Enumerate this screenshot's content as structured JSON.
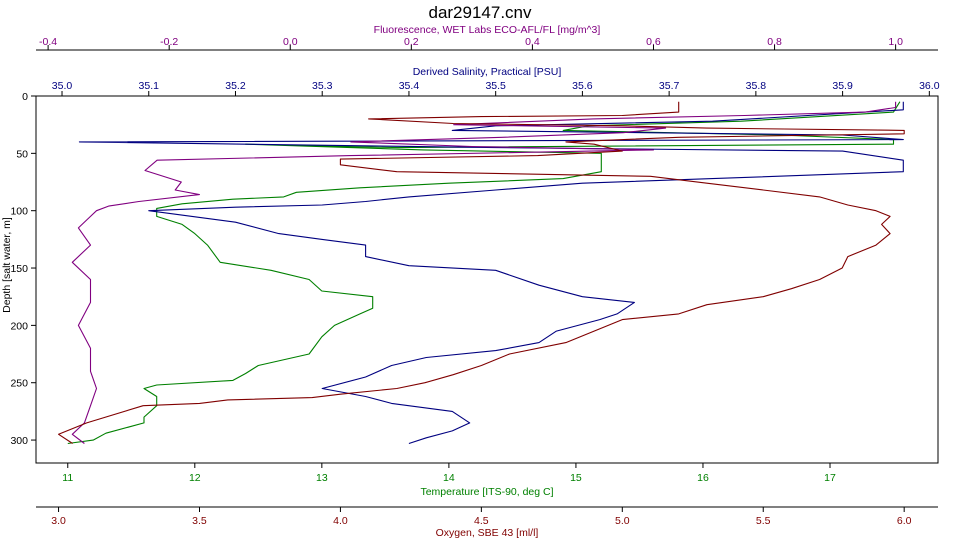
{
  "chart_data": {
    "type": "line",
    "title": "dar29147.cnv",
    "y_axis": {
      "label": "Depth [salt water, m]",
      "range": [
        320,
        0
      ],
      "ticks": [
        0,
        50,
        100,
        150,
        200,
        250,
        300
      ],
      "color": "#000000"
    },
    "x_axes": [
      {
        "id": "fluorescence",
        "label": "Fluorescence, WET Labs ECO-AFL/FL [mg/m^3]",
        "position": "top-outer",
        "range": [
          -0.42,
          1.07
        ],
        "ticks": [
          -0.4,
          -0.2,
          0.0,
          0.2,
          0.4,
          0.6,
          0.8,
          1.0
        ],
        "tick_labels": [
          "-0.4",
          "-0.2",
          "0.0",
          "0.2",
          "0.4",
          "0.6",
          "0.8",
          "1.0"
        ],
        "color": "#800080"
      },
      {
        "id": "salinity",
        "label": "Derived Salinity, Practical [PSU]",
        "position": "top-inner",
        "range": [
          34.97,
          36.01
        ],
        "ticks": [
          35.0,
          35.1,
          35.2,
          35.3,
          35.4,
          35.5,
          35.6,
          35.7,
          35.8,
          35.9,
          36.0
        ],
        "tick_labels": [
          "35.0",
          "35.1",
          "35.2",
          "35.3",
          "35.4",
          "35.5",
          "35.6",
          "35.7",
          "35.8",
          "35.9",
          "36.0"
        ],
        "color": "#000080"
      },
      {
        "id": "temperature",
        "label": "Temperature [ITS-90, deg C]",
        "position": "bottom-inner",
        "range": [
          10.75,
          17.85
        ],
        "ticks": [
          11,
          12,
          13,
          14,
          15,
          16,
          17
        ],
        "tick_labels": [
          "11",
          "12",
          "13",
          "14",
          "15",
          "16",
          "17"
        ],
        "color": "#008000"
      },
      {
        "id": "oxygen",
        "label": "Oxygen, SBE 43 [ml/l]",
        "position": "bottom-outer",
        "range": [
          2.92,
          6.12
        ],
        "ticks": [
          3.0,
          3.5,
          4.0,
          4.5,
          5.0,
          5.5,
          6.0
        ],
        "tick_labels": [
          "3.0",
          "3.5",
          "4.0",
          "4.5",
          "5.0",
          "5.5",
          "6.0"
        ],
        "color": "#800000"
      }
    ],
    "grid": false,
    "series": [
      {
        "axis": "temperature",
        "color": "#008000",
        "points": [
          [
            17.55,
            5
          ],
          [
            17.5,
            14
          ],
          [
            16.3,
            22
          ],
          [
            15.1,
            26
          ],
          [
            14.9,
            30
          ],
          [
            16.6,
            34
          ],
          [
            17.5,
            38
          ],
          [
            17.5,
            42
          ],
          [
            13.6,
            45
          ],
          [
            12.4,
            42
          ],
          [
            13.8,
            47
          ],
          [
            15.2,
            50
          ],
          [
            15.2,
            56
          ],
          [
            15.2,
            66
          ],
          [
            14.9,
            72
          ],
          [
            14.0,
            76
          ],
          [
            13.3,
            80
          ],
          [
            12.8,
            84
          ],
          [
            12.7,
            88
          ],
          [
            12.3,
            90
          ],
          [
            11.9,
            94
          ],
          [
            11.7,
            98
          ],
          [
            11.7,
            105
          ],
          [
            11.9,
            112
          ],
          [
            12.0,
            120
          ],
          [
            12.1,
            130
          ],
          [
            12.2,
            145
          ],
          [
            12.6,
            152
          ],
          [
            12.9,
            160
          ],
          [
            13.0,
            170
          ],
          [
            13.4,
            175
          ],
          [
            13.4,
            185
          ],
          [
            13.3,
            190
          ],
          [
            13.1,
            200
          ],
          [
            13.0,
            210
          ],
          [
            12.9,
            225
          ],
          [
            12.5,
            235
          ],
          [
            12.4,
            242
          ],
          [
            12.3,
            248
          ],
          [
            11.7,
            252
          ],
          [
            11.6,
            255
          ],
          [
            11.7,
            262
          ],
          [
            11.7,
            270
          ],
          [
            11.6,
            280
          ],
          [
            11.6,
            285
          ],
          [
            11.3,
            294
          ],
          [
            11.2,
            300
          ],
          [
            11.0,
            303
          ]
        ]
      },
      {
        "axis": "salinity",
        "color": "#000080",
        "points": [
          [
            35.97,
            5
          ],
          [
            35.97,
            12
          ],
          [
            35.75,
            22
          ],
          [
            35.5,
            26
          ],
          [
            35.45,
            30
          ],
          [
            35.9,
            34
          ],
          [
            35.97,
            38
          ],
          [
            35.02,
            40
          ],
          [
            35.5,
            45
          ],
          [
            35.9,
            48
          ],
          [
            35.97,
            56
          ],
          [
            35.97,
            66
          ],
          [
            35.75,
            72
          ],
          [
            35.6,
            76
          ],
          [
            35.5,
            82
          ],
          [
            35.4,
            88
          ],
          [
            35.35,
            92
          ],
          [
            35.3,
            95
          ],
          [
            35.2,
            97
          ],
          [
            35.1,
            100
          ],
          [
            35.15,
            105
          ],
          [
            35.2,
            110
          ],
          [
            35.25,
            120
          ],
          [
            35.3,
            125
          ],
          [
            35.35,
            130
          ],
          [
            35.35,
            140
          ],
          [
            35.4,
            148
          ],
          [
            35.5,
            152
          ],
          [
            35.55,
            165
          ],
          [
            35.6,
            175
          ],
          [
            35.66,
            180
          ],
          [
            35.64,
            190
          ],
          [
            35.62,
            195
          ],
          [
            35.57,
            205
          ],
          [
            35.55,
            215
          ],
          [
            35.5,
            222
          ],
          [
            35.42,
            228
          ],
          [
            35.38,
            235
          ],
          [
            35.35,
            245
          ],
          [
            35.3,
            255
          ],
          [
            35.35,
            262
          ],
          [
            35.38,
            268
          ],
          [
            35.45,
            275
          ],
          [
            35.47,
            285
          ],
          [
            35.45,
            292
          ],
          [
            35.42,
            298
          ],
          [
            35.4,
            303
          ]
        ]
      },
      {
        "axis": "fluorescence",
        "color": "#800080",
        "points": [
          [
            1.0,
            5
          ],
          [
            1.0,
            10
          ],
          [
            0.95,
            14
          ],
          [
            0.75,
            17
          ],
          [
            0.5,
            20
          ],
          [
            0.27,
            25
          ],
          [
            0.62,
            28
          ],
          [
            0.55,
            32
          ],
          [
            0.35,
            36
          ],
          [
            0.1,
            40
          ],
          [
            0.3,
            44
          ],
          [
            0.6,
            47
          ],
          [
            0.1,
            52
          ],
          [
            -0.22,
            56
          ],
          [
            -0.24,
            65
          ],
          [
            -0.18,
            75
          ],
          [
            -0.19,
            82
          ],
          [
            -0.15,
            86
          ],
          [
            -0.25,
            92
          ],
          [
            -0.3,
            96
          ],
          [
            -0.32,
            100
          ],
          [
            -0.33,
            105
          ],
          [
            -0.35,
            115
          ],
          [
            -0.33,
            130
          ],
          [
            -0.36,
            145
          ],
          [
            -0.33,
            160
          ],
          [
            -0.33,
            180
          ],
          [
            -0.35,
            200
          ],
          [
            -0.33,
            220
          ],
          [
            -0.33,
            240
          ],
          [
            -0.32,
            255
          ],
          [
            -0.33,
            270
          ],
          [
            -0.34,
            285
          ],
          [
            -0.36,
            295
          ],
          [
            -0.34,
            303
          ]
        ]
      },
      {
        "axis": "oxygen",
        "color": "#800000",
        "points": [
          [
            5.2,
            5
          ],
          [
            5.2,
            12
          ],
          [
            5.2,
            14
          ],
          [
            5.0,
            17
          ],
          [
            4.5,
            18
          ],
          [
            4.1,
            20
          ],
          [
            4.4,
            24
          ],
          [
            5.0,
            26
          ],
          [
            5.3,
            28
          ],
          [
            6.0,
            30
          ],
          [
            6.0,
            33
          ],
          [
            5.2,
            36
          ],
          [
            4.8,
            40
          ],
          [
            4.9,
            42
          ],
          [
            5.0,
            48
          ],
          [
            4.7,
            52
          ],
          [
            4.0,
            55
          ],
          [
            4.0,
            60
          ],
          [
            4.2,
            66
          ],
          [
            5.1,
            70
          ],
          [
            5.3,
            76
          ],
          [
            5.5,
            82
          ],
          [
            5.7,
            88
          ],
          [
            5.8,
            95
          ],
          [
            5.9,
            100
          ],
          [
            5.95,
            105
          ],
          [
            5.92,
            112
          ],
          [
            5.95,
            120
          ],
          [
            5.9,
            130
          ],
          [
            5.8,
            140
          ],
          [
            5.78,
            150
          ],
          [
            5.7,
            160
          ],
          [
            5.6,
            168
          ],
          [
            5.5,
            175
          ],
          [
            5.3,
            182
          ],
          [
            5.2,
            190
          ],
          [
            5.0,
            195
          ],
          [
            4.9,
            205
          ],
          [
            4.8,
            215
          ],
          [
            4.6,
            225
          ],
          [
            4.5,
            235
          ],
          [
            4.4,
            243
          ],
          [
            4.3,
            250
          ],
          [
            4.2,
            255
          ],
          [
            4.0,
            260
          ],
          [
            3.9,
            263
          ],
          [
            3.6,
            265
          ],
          [
            3.5,
            268
          ],
          [
            3.3,
            270
          ],
          [
            3.1,
            285
          ],
          [
            3.0,
            295
          ],
          [
            3.05,
            303
          ]
        ]
      }
    ]
  }
}
